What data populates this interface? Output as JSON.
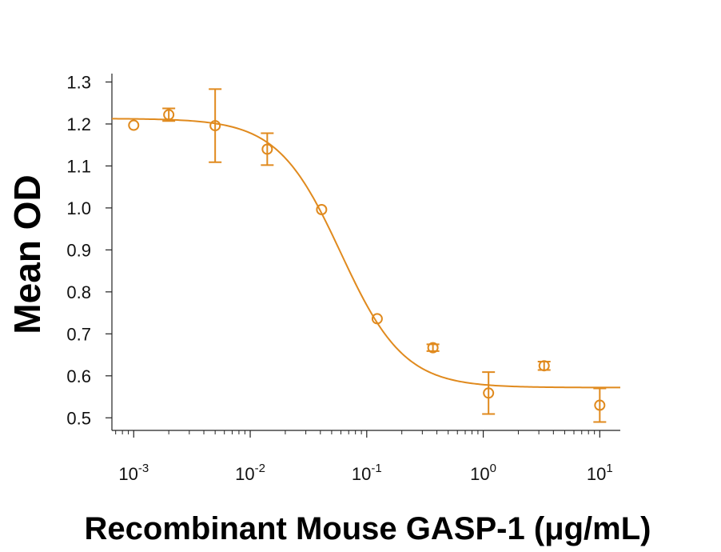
{
  "chart_data": {
    "type": "scatter",
    "title": "",
    "xlabel": "Recombinant Mouse GASP-1 (μg/mL)",
    "ylabel": "Mean OD",
    "xscale": "log",
    "xlim": [
      0.00065,
      15
    ],
    "ylim": [
      0.47,
      1.32
    ],
    "x_ticks": [
      {
        "value": 0.001,
        "base": "10",
        "exp": "-3"
      },
      {
        "value": 0.01,
        "base": "10",
        "exp": "-2"
      },
      {
        "value": 0.1,
        "base": "10",
        "exp": "-1"
      },
      {
        "value": 1,
        "base": "10",
        "exp": "0"
      },
      {
        "value": 10,
        "base": "10",
        "exp": "1"
      }
    ],
    "y_ticks": [
      "0.5",
      "0.6",
      "0.7",
      "0.8",
      "0.9",
      "1.0",
      "1.1",
      "1.2",
      "1.3"
    ],
    "color": "#E08A1E",
    "series": [
      {
        "name": "GASP-1",
        "x": [
          0.001,
          0.002,
          0.005,
          0.014,
          0.041,
          0.123,
          0.37,
          1.11,
          3.33,
          10
        ],
        "y": [
          1.197,
          1.222,
          1.196,
          1.14,
          0.996,
          0.736,
          0.667,
          0.559,
          0.624,
          0.53
        ],
        "err": [
          0.0,
          0.015,
          0.087,
          0.038,
          0.0,
          0.0,
          0.008,
          0.05,
          0.01,
          0.04
        ]
      }
    ],
    "fit": {
      "model": "4PL",
      "top": 1.213,
      "bottom": 0.572,
      "ec50": 0.06,
      "hill": 1.6
    }
  }
}
